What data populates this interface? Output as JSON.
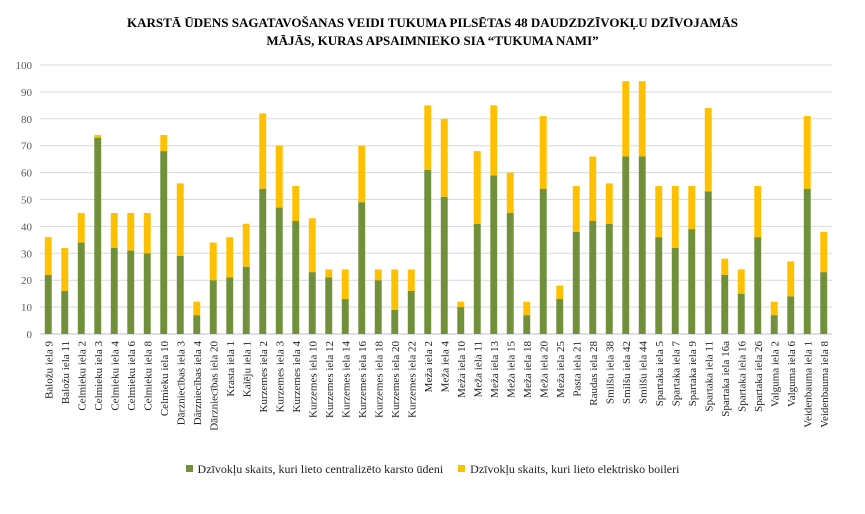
{
  "chart_data": {
    "type": "bar",
    "stacked": true,
    "title_lines": [
      "KARSTĀ ŪDENS SAGATAVOŠANAS VEIDI TUKUMA PILSĒTAS 48 DAUDZDZĪVOKĻU DZĪVOJAMĀS",
      "MĀJĀS, KURAS APSAIMNIEKO SIA “TUKUMA NAMI”"
    ],
    "ylim": [
      0,
      100
    ],
    "yticks": [
      0,
      10,
      20,
      30,
      40,
      50,
      60,
      70,
      80,
      90,
      100
    ],
    "grid": true,
    "legend_position": "bottom",
    "categories": [
      "Baložu iela 9",
      "Baložu iela 11",
      "Celmieku iela 2",
      "Celmieku iela 3",
      "Celmieku iela 4",
      "Celmieku iela 6",
      "Celmieku iela 8",
      "Celmieku iela 10",
      "Dārzniecības iela 3",
      "Dārzniecības iela 4",
      "Dārzniecības iela 20",
      "Krasta iela 1",
      "Kalēju iela 1",
      "Kurzemes iela 2",
      "Kurzemes iela 3",
      "Kurzemes iela 4",
      "Kurzemes iela 10",
      "Kurzemes iela 12",
      "Kurzemes iela 14",
      "Kurzemes iela 16",
      "Kurzemes iela 18",
      "Kurzemes iela 20",
      "Kurzemes iela 22",
      "Meža iela 2",
      "Meža iela 4",
      "Meža iela 10",
      "Meža iela 11",
      "Meža iela 13",
      "Meža iela 15",
      "Meža iela 18",
      "Meža iela 20",
      "Meža iela 25",
      "Pasta iela 21",
      "Raudas iela 28",
      "Smilšu iela 38",
      "Smilšu iela 42",
      "Smilšu iela 44",
      "Spartaka iela 5",
      "Spartaka iela 7",
      "Spartaka iela 9",
      "Spartaka iela 11",
      "Spartaka iela 16a",
      "Spartaka iela 16",
      "Spartaka iela 26",
      "Valguma iela 2",
      "Valguma iela 6",
      "Veidenbauma iela 1",
      "Veidenbauma iela 8"
    ],
    "series": [
      {
        "name": "Dzīvokļu skaits, kuri lieto centralizēto karsto ūdeni",
        "color": "#70913a",
        "values": [
          22,
          16,
          34,
          73,
          32,
          31,
          30,
          68,
          29,
          7,
          20,
          21,
          25,
          54,
          47,
          42,
          23,
          21,
          13,
          49,
          20,
          9,
          16,
          61,
          51,
          10,
          41,
          59,
          45,
          7,
          54,
          13,
          38,
          42,
          41,
          66,
          66,
          36,
          32,
          39,
          53,
          22,
          15,
          36,
          7,
          14,
          54,
          23
        ]
      },
      {
        "name": "Dzīvokļu skaits, kuri lieto elektrisko boileri",
        "color": "#ffc000",
        "values": [
          14,
          16,
          11,
          1,
          13,
          14,
          15,
          6,
          27,
          5,
          14,
          15,
          16,
          28,
          23,
          13,
          20,
          3,
          11,
          21,
          4,
          15,
          8,
          24,
          29,
          2,
          27,
          26,
          15,
          5,
          27,
          5,
          17,
          24,
          15,
          28,
          28,
          19,
          23,
          16,
          31,
          6,
          9,
          19,
          5,
          13,
          27,
          15
        ]
      }
    ]
  }
}
